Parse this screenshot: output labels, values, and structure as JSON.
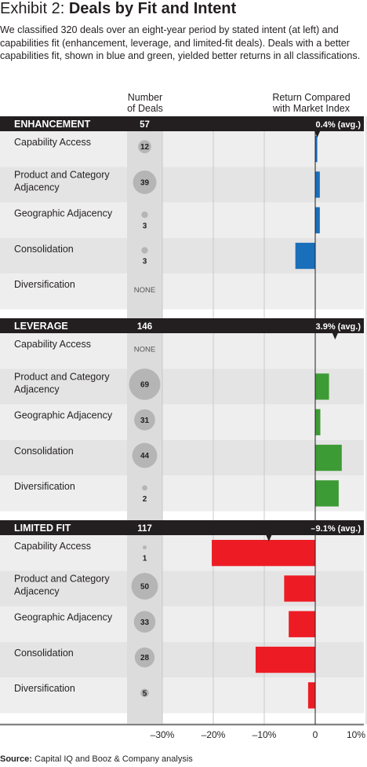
{
  "title_prefix": "Exhibit 2: ",
  "title": "Deals by Fit and Intent",
  "subtitle": "We classified 320 deals over an eight-year period by stated intent (at left) and capabilities fit (enhancement, leverage, and limited-fit deals). Deals with a better capabilities fit, shown in blue and green, yielded better returns in all classifications.",
  "col_number_of_deals": [
    "Number",
    "of Deals"
  ],
  "col_return": [
    "Return Compared",
    "with Market Index"
  ],
  "source_label": "Source:",
  "source_text": " Capital IQ and Booz & Company analysis",
  "chart_data": {
    "type": "bar",
    "orientation": "horizontal",
    "x_axis": {
      "min": -35,
      "max": 10,
      "ticks": [
        -30,
        -20,
        -10,
        0,
        10
      ],
      "tick_labels": [
        "–30%",
        "–20%",
        "–10%",
        "0",
        "10%"
      ]
    },
    "grid": true,
    "groups": [
      {
        "name": "ENHANCEMENT",
        "deals": "57",
        "avg": 0.4,
        "avg_label": "0.4% (avg.)",
        "color": "#1a6fba",
        "rows": [
          {
            "label": [
              "Capability Access"
            ],
            "deals": 12,
            "deals_label": "12",
            "value": 0.4
          },
          {
            "label": [
              "Product and Category",
              "Adjacency"
            ],
            "deals": 39,
            "deals_label": "39",
            "value": 0.9
          },
          {
            "label": [
              "Geographic Adjacency"
            ],
            "deals": 3,
            "deals_label": "3",
            "value": 0.9
          },
          {
            "label": [
              "Consolidation"
            ],
            "deals": 3,
            "deals_label": "3",
            "value": -3.9
          },
          {
            "label": [
              "Diversification"
            ],
            "deals": 0,
            "deals_label": "NONE",
            "value": null
          }
        ]
      },
      {
        "name": "LEVERAGE",
        "deals": "146",
        "avg": 3.9,
        "avg_label": "3.9% (avg.)",
        "color": "#3d9b35",
        "rows": [
          {
            "label": [
              "Capability Access"
            ],
            "deals": 0,
            "deals_label": "NONE",
            "value": null
          },
          {
            "label": [
              "Product and Category",
              "Adjacency"
            ],
            "deals": 69,
            "deals_label": "69",
            "value": 2.7
          },
          {
            "label": [
              "Geographic Adjacency"
            ],
            "deals": 31,
            "deals_label": "31",
            "value": 1.0
          },
          {
            "label": [
              "Consolidation"
            ],
            "deals": 44,
            "deals_label": "44",
            "value": 5.2
          },
          {
            "label": [
              "Diversification"
            ],
            "deals": 2,
            "deals_label": "2",
            "value": 4.6
          }
        ]
      },
      {
        "name": "LIMITED FIT",
        "deals": "117",
        "avg": -9.1,
        "avg_label": "–9.1% (avg.)",
        "color": "#ed1c24",
        "rows": [
          {
            "label": [
              "Capability Access"
            ],
            "deals": 1,
            "deals_label": "1",
            "value": -20.3
          },
          {
            "label": [
              "Product and Category",
              "Adjacency"
            ],
            "deals": 50,
            "deals_label": "50",
            "value": -6.1
          },
          {
            "label": [
              "Geographic Adjacency"
            ],
            "deals": 33,
            "deals_label": "33",
            "value": -5.2
          },
          {
            "label": [
              "Consolidation"
            ],
            "deals": 28,
            "deals_label": "28",
            "value": -11.7
          },
          {
            "label": [
              "Diversification"
            ],
            "deals": 5,
            "deals_label": "5",
            "value": -1.4
          }
        ]
      }
    ]
  }
}
